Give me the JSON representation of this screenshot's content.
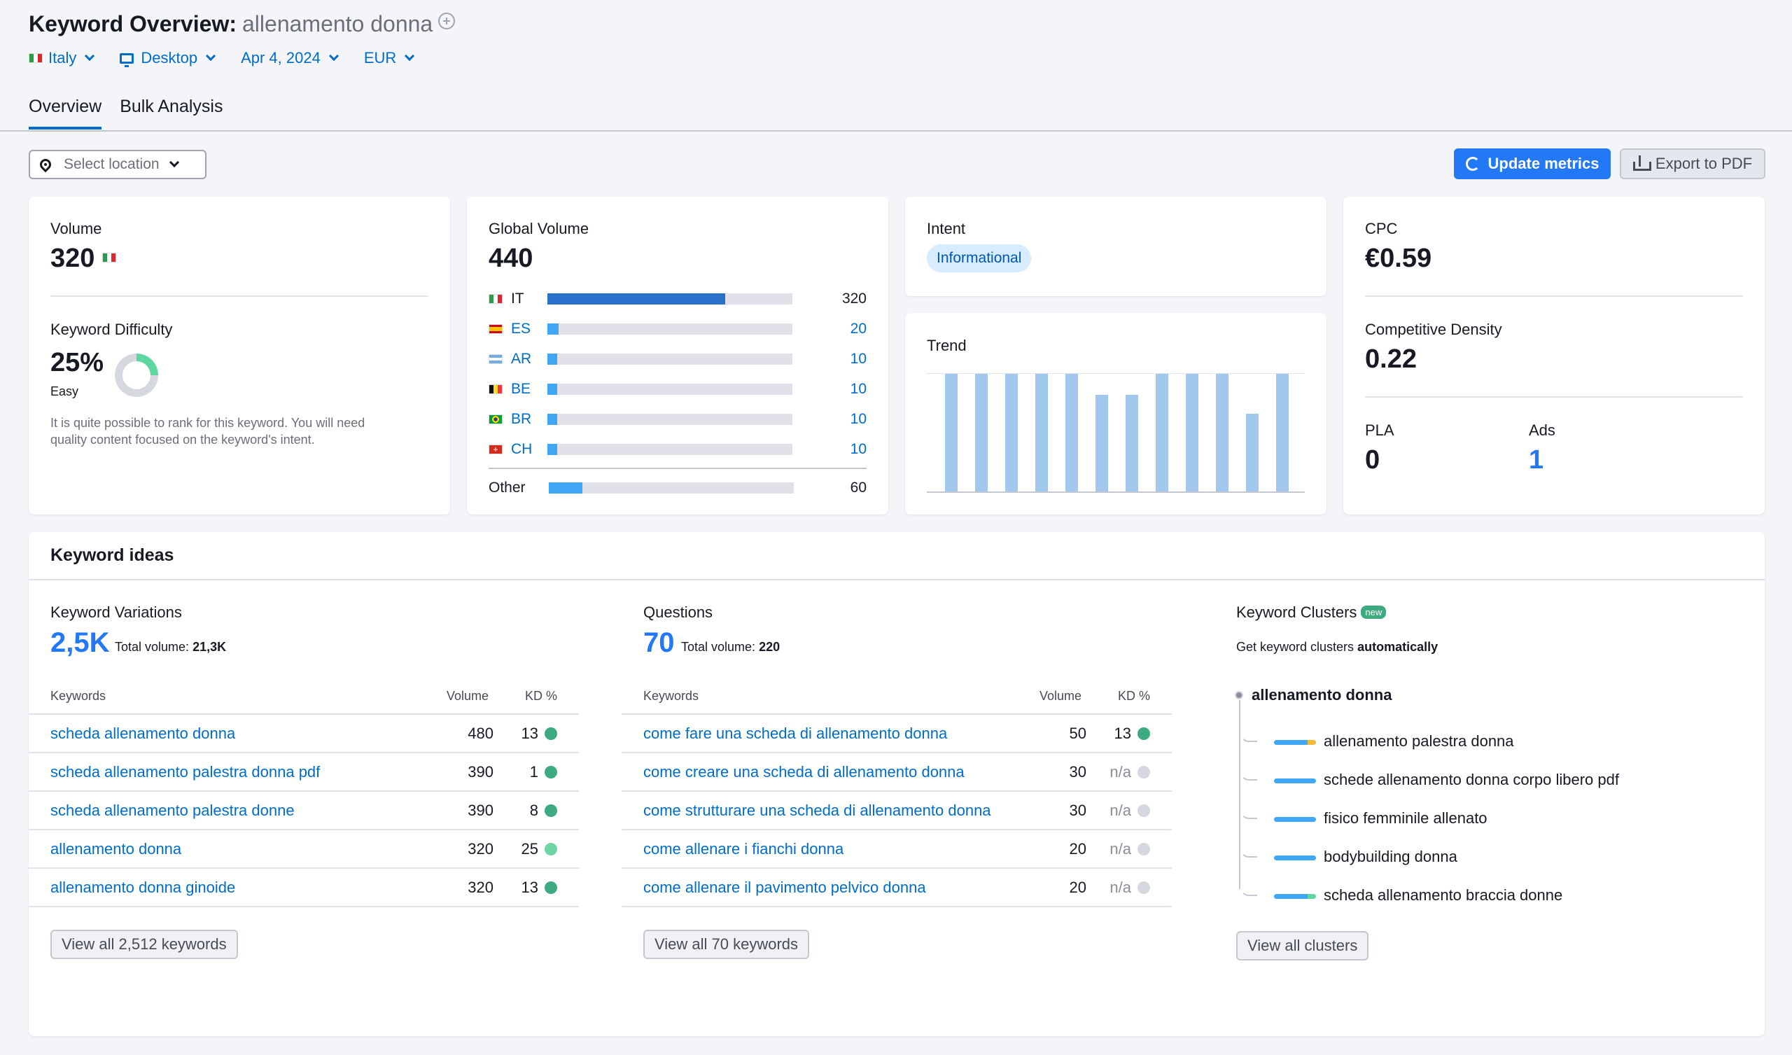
{
  "header": {
    "title": "Keyword Overview:",
    "keyword": "allenamento donna",
    "filters": {
      "country": "Italy",
      "device": "Desktop",
      "date": "Apr 4, 2024",
      "currency": "EUR"
    },
    "tabs": [
      "Overview",
      "Bulk Analysis"
    ]
  },
  "toolbar": {
    "location_placeholder": "Select location",
    "update_label": "Update metrics",
    "export_label": "Export to PDF"
  },
  "volume": {
    "label": "Volume",
    "value": "320",
    "kd_label": "Keyword Difficulty",
    "kd_value": "25%",
    "kd_fraction": 0.25,
    "kd_level": "Easy",
    "kd_desc_1": "It is quite possible to rank for this keyword. You will need",
    "kd_desc_2": "quality content focused on the keyword's intent."
  },
  "global_volume": {
    "label": "Global Volume",
    "value": "440",
    "rows": [
      {
        "code": "IT",
        "value": "320",
        "share": 0.727
      },
      {
        "code": "ES",
        "value": "20",
        "share": 0.045
      },
      {
        "code": "AR",
        "value": "10",
        "share": 0.023
      },
      {
        "code": "BE",
        "value": "10",
        "share": 0.023
      },
      {
        "code": "BR",
        "value": "10",
        "share": 0.023
      },
      {
        "code": "CH",
        "value": "10",
        "share": 0.023
      }
    ],
    "other_label": "Other",
    "other_value": "60",
    "other_share": 0.136
  },
  "intent": {
    "label": "Intent",
    "value": "Informational"
  },
  "trend": {
    "label": "Trend",
    "values": [
      1.0,
      1.0,
      1.0,
      1.0,
      1.0,
      0.82,
      0.82,
      1.0,
      1.0,
      1.0,
      0.66,
      1.0
    ]
  },
  "cpc": {
    "label": "CPC",
    "value": "€0.59",
    "cd_label": "Competitive Density",
    "cd_value": "0.22",
    "pla_label": "PLA",
    "pla_value": "0",
    "ads_label": "Ads",
    "ads_value": "1"
  },
  "ideas": {
    "title": "Keyword ideas",
    "col_keywords": "Keywords",
    "col_volume": "Volume",
    "col_kd": "KD %",
    "variations": {
      "label": "Keyword Variations",
      "count": "2,5K",
      "total_label": "Total volume:",
      "total_value": "21,3K",
      "rows": [
        {
          "kw": "scheda allenamento donna",
          "vol": "480",
          "kd": "13"
        },
        {
          "kw": "scheda allenamento palestra donna pdf",
          "vol": "390",
          "kd": "1"
        },
        {
          "kw": "scheda allenamento palestra donne",
          "vol": "390",
          "kd": "8"
        },
        {
          "kw": "allenamento donna",
          "vol": "320",
          "kd": "25"
        },
        {
          "kw": "allenamento donna ginoide",
          "vol": "320",
          "kd": "13"
        }
      ],
      "view_all": "View all 2,512 keywords"
    },
    "questions": {
      "label": "Questions",
      "count": "70",
      "total_label": "Total volume:",
      "total_value": "220",
      "rows": [
        {
          "kw": "come fare una scheda di allenamento donna",
          "vol": "50",
          "kd": "13"
        },
        {
          "kw": "come creare una scheda di allenamento donna",
          "vol": "30",
          "kd": "n/a"
        },
        {
          "kw": "come strutturare una scheda di allenamento donna",
          "vol": "30",
          "kd": "n/a"
        },
        {
          "kw": "come allenare i fianchi donna",
          "vol": "20",
          "kd": "n/a"
        },
        {
          "kw": "come allenare il pavimento pelvico donna",
          "vol": "20",
          "kd": "n/a"
        }
      ],
      "view_all": "View all 70 keywords"
    },
    "clusters": {
      "label": "Keyword Clusters",
      "badge": "new",
      "desc_prefix": "Get keyword clusters",
      "desc_bold": "automatically",
      "root": "allenamento donna",
      "items": [
        "allenamento palestra donna",
        "schede allenamento donna corpo libero pdf",
        "fisico femminile allenato",
        "bodybuilding donna",
        "scheda allenamento braccia donne"
      ],
      "view_all": "View all clusters"
    }
  },
  "colors": {
    "accent": "#2378f5",
    "link": "#006dca",
    "kd_green": "#3daa7f",
    "kd_light_green": "#6fd4a3",
    "na_gray": "#d6d8df"
  }
}
